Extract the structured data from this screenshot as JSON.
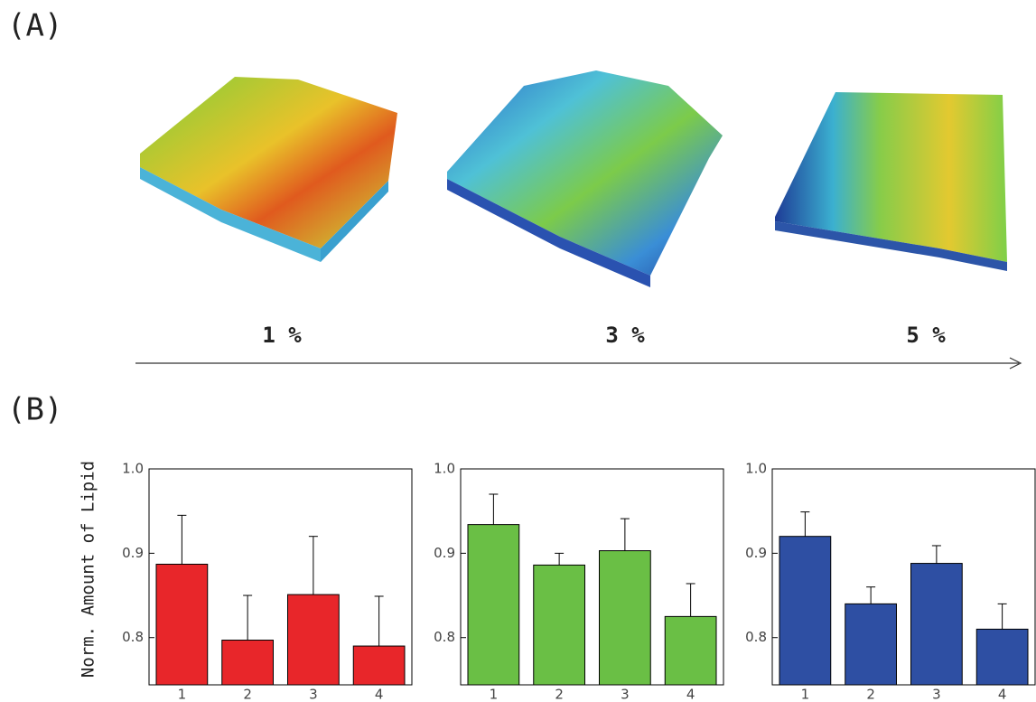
{
  "panel_a": {
    "label": "(A)",
    "images": [
      {
        "label": "1 %"
      },
      {
        "label": "3 %"
      },
      {
        "label": "5 %"
      }
    ]
  },
  "panel_b": {
    "label": "(B)"
  },
  "chart_data": [
    {
      "type": "bar",
      "y_label": "Norm. Amount of Lipid",
      "categories": [
        "1",
        "2",
        "3",
        "4"
      ],
      "values": [
        0.887,
        0.797,
        0.851,
        0.79
      ],
      "errors": [
        0.058,
        0.053,
        0.069,
        0.059
      ],
      "color": "#e8262a",
      "ylim": [
        0.744,
        1.0
      ],
      "yticks": [
        0.8,
        0.9,
        {
          "value": 1.0,
          "label": "1.0"
        }
      ]
    },
    {
      "type": "bar",
      "categories": [
        "1",
        "2",
        "3",
        "4"
      ],
      "values": [
        0.934,
        0.886,
        0.903,
        0.825
      ],
      "errors": [
        0.036,
        0.014,
        0.038,
        0.039
      ],
      "color": "#6abf45",
      "ylim": [
        0.744,
        1.0
      ],
      "yticks": [
        0.8,
        0.9,
        {
          "value": 1.0,
          "label": "1.0"
        }
      ]
    },
    {
      "type": "bar",
      "categories": [
        "1",
        "2",
        "3",
        "4"
      ],
      "values": [
        0.92,
        0.84,
        0.888,
        0.81
      ],
      "errors": [
        0.029,
        0.02,
        0.021,
        0.03
      ],
      "color": "#2e4fa3",
      "ylim": [
        0.744,
        1.0
      ],
      "yticks": [
        0.8,
        0.9,
        {
          "value": 1.0,
          "label": "1.0"
        }
      ]
    }
  ]
}
